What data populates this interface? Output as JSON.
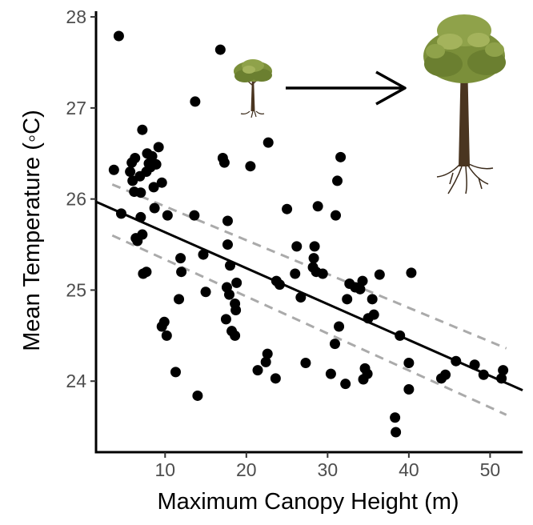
{
  "chart_data": {
    "type": "scatter",
    "title": "",
    "xlabel": "Maximum Canopy Height (m)",
    "ylabel": "Mean Temperature (◦C)",
    "xlim": [
      1.5,
      54
    ],
    "ylim": [
      23.22,
      28.08
    ],
    "x_ticks": [
      10,
      20,
      30,
      40,
      50
    ],
    "y_ticks": [
      24,
      25,
      26,
      27,
      28
    ],
    "grid": false,
    "legend": "none",
    "point_color": "#000000",
    "fit_line": {
      "x": [
        1.5,
        54
      ],
      "y": [
        25.97,
        23.9
      ],
      "color": "#000000"
    },
    "confidence_band": {
      "color": "#aaaaaa",
      "upper": {
        "x": [
          3.5,
          52
        ],
        "y": [
          26.16,
          24.36
        ]
      },
      "lower": {
        "x": [
          3.5,
          52
        ],
        "y": [
          25.6,
          23.63
        ]
      }
    },
    "annotation": {
      "small_tree_icon": "small-tree-icon",
      "arrow_icon": "arrow-right-icon",
      "large_tree_icon": "large-tree-icon"
    },
    "points": [
      {
        "x": 4.3,
        "y": 27.79
      },
      {
        "x": 3.7,
        "y": 26.32
      },
      {
        "x": 4.6,
        "y": 25.84
      },
      {
        "x": 5.7,
        "y": 26.3
      },
      {
        "x": 5.9,
        "y": 26.4
      },
      {
        "x": 6.0,
        "y": 26.2
      },
      {
        "x": 6.3,
        "y": 26.45
      },
      {
        "x": 6.2,
        "y": 26.08
      },
      {
        "x": 6.4,
        "y": 25.57
      },
      {
        "x": 6.6,
        "y": 25.54
      },
      {
        "x": 6.9,
        "y": 26.25
      },
      {
        "x": 7.0,
        "y": 25.8
      },
      {
        "x": 7.0,
        "y": 26.07
      },
      {
        "x": 7.2,
        "y": 26.76
      },
      {
        "x": 7.2,
        "y": 25.61
      },
      {
        "x": 7.3,
        "y": 25.18
      },
      {
        "x": 7.7,
        "y": 25.2
      },
      {
        "x": 7.7,
        "y": 26.3
      },
      {
        "x": 7.8,
        "y": 26.5
      },
      {
        "x": 8.0,
        "y": 26.39
      },
      {
        "x": 8.2,
        "y": 26.35
      },
      {
        "x": 8.4,
        "y": 26.47
      },
      {
        "x": 8.6,
        "y": 26.13
      },
      {
        "x": 8.7,
        "y": 25.9
      },
      {
        "x": 8.9,
        "y": 26.38
      },
      {
        "x": 9.2,
        "y": 26.57
      },
      {
        "x": 9.6,
        "y": 26.18
      },
      {
        "x": 9.6,
        "y": 24.6
      },
      {
        "x": 9.9,
        "y": 24.65
      },
      {
        "x": 10.2,
        "y": 24.5
      },
      {
        "x": 10.3,
        "y": 25.82
      },
      {
        "x": 11.3,
        "y": 24.1
      },
      {
        "x": 11.7,
        "y": 24.9
      },
      {
        "x": 11.9,
        "y": 25.35
      },
      {
        "x": 12.0,
        "y": 25.2
      },
      {
        "x": 13.6,
        "y": 25.82
      },
      {
        "x": 13.7,
        "y": 27.07
      },
      {
        "x": 14.0,
        "y": 23.84
      },
      {
        "x": 14.7,
        "y": 25.39
      },
      {
        "x": 15.0,
        "y": 24.98
      },
      {
        "x": 16.8,
        "y": 27.64
      },
      {
        "x": 17.1,
        "y": 26.45
      },
      {
        "x": 17.3,
        "y": 26.4
      },
      {
        "x": 17.5,
        "y": 24.68
      },
      {
        "x": 17.6,
        "y": 25.03
      },
      {
        "x": 17.7,
        "y": 25.5
      },
      {
        "x": 17.7,
        "y": 25.76
      },
      {
        "x": 17.9,
        "y": 24.95
      },
      {
        "x": 18.0,
        "y": 25.27
      },
      {
        "x": 18.2,
        "y": 24.55
      },
      {
        "x": 18.6,
        "y": 24.85
      },
      {
        "x": 18.6,
        "y": 24.5
      },
      {
        "x": 18.7,
        "y": 24.78
      },
      {
        "x": 18.8,
        "y": 25.08
      },
      {
        "x": 20.5,
        "y": 26.36
      },
      {
        "x": 21.4,
        "y": 24.12
      },
      {
        "x": 22.4,
        "y": 24.21
      },
      {
        "x": 22.6,
        "y": 24.3
      },
      {
        "x": 22.7,
        "y": 26.62
      },
      {
        "x": 23.6,
        "y": 24.03
      },
      {
        "x": 23.7,
        "y": 25.1
      },
      {
        "x": 24.1,
        "y": 25.06
      },
      {
        "x": 25.0,
        "y": 25.89
      },
      {
        "x": 26.2,
        "y": 25.48
      },
      {
        "x": 26.0,
        "y": 25.18
      },
      {
        "x": 26.7,
        "y": 24.92
      },
      {
        "x": 27.3,
        "y": 24.2
      },
      {
        "x": 28.2,
        "y": 25.25
      },
      {
        "x": 28.3,
        "y": 25.35
      },
      {
        "x": 28.4,
        "y": 25.48
      },
      {
        "x": 28.6,
        "y": 25.2
      },
      {
        "x": 28.8,
        "y": 25.92
      },
      {
        "x": 29.4,
        "y": 25.18
      },
      {
        "x": 30.4,
        "y": 24.08
      },
      {
        "x": 30.9,
        "y": 24.41
      },
      {
        "x": 31.0,
        "y": 25.82
      },
      {
        "x": 31.2,
        "y": 26.2
      },
      {
        "x": 31.4,
        "y": 24.6
      },
      {
        "x": 31.6,
        "y": 26.46
      },
      {
        "x": 32.2,
        "y": 23.97
      },
      {
        "x": 32.4,
        "y": 24.9
      },
      {
        "x": 32.7,
        "y": 25.07
      },
      {
        "x": 33.4,
        "y": 25.03
      },
      {
        "x": 34.0,
        "y": 25.01
      },
      {
        "x": 34.3,
        "y": 25.1
      },
      {
        "x": 34.4,
        "y": 24.02
      },
      {
        "x": 34.6,
        "y": 24.14
      },
      {
        "x": 34.9,
        "y": 24.08
      },
      {
        "x": 35.0,
        "y": 24.69
      },
      {
        "x": 35.5,
        "y": 24.9
      },
      {
        "x": 35.7,
        "y": 24.73
      },
      {
        "x": 36.4,
        "y": 25.17
      },
      {
        "x": 38.3,
        "y": 23.6
      },
      {
        "x": 38.4,
        "y": 23.44
      },
      {
        "x": 38.9,
        "y": 24.5
      },
      {
        "x": 40.0,
        "y": 23.91
      },
      {
        "x": 40.0,
        "y": 24.2
      },
      {
        "x": 40.3,
        "y": 25.19
      },
      {
        "x": 44.0,
        "y": 24.03
      },
      {
        "x": 44.5,
        "y": 24.07
      },
      {
        "x": 45.8,
        "y": 24.22
      },
      {
        "x": 48.1,
        "y": 24.18
      },
      {
        "x": 49.2,
        "y": 24.07
      },
      {
        "x": 51.4,
        "y": 24.03
      },
      {
        "x": 51.6,
        "y": 24.12
      }
    ]
  }
}
